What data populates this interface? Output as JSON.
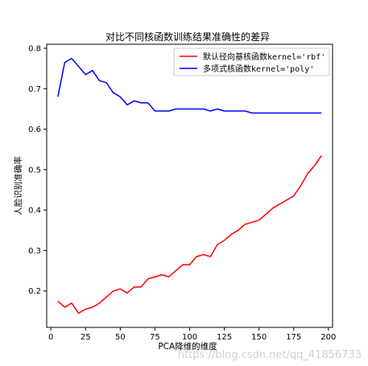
{
  "chart_data": {
    "type": "line",
    "title": "对比不同核函数训练结果准确性的差异",
    "xlabel": "PCA降维的维度",
    "ylabel": "人脸识别准确率",
    "xlim": [
      -3,
      203
    ],
    "ylim": [
      0.11,
      0.81
    ],
    "xticks": [
      0,
      25,
      50,
      75,
      100,
      125,
      150,
      175,
      200
    ],
    "yticks": [
      0.2,
      0.3,
      0.4,
      0.5,
      0.6,
      0.7,
      0.8
    ],
    "grid": false,
    "legend_position": "top-right",
    "x": [
      5,
      10,
      15,
      20,
      25,
      30,
      35,
      40,
      45,
      50,
      55,
      60,
      65,
      70,
      75,
      80,
      85,
      90,
      95,
      100,
      105,
      110,
      115,
      120,
      125,
      130,
      135,
      140,
      145,
      150,
      155,
      160,
      165,
      170,
      175,
      180,
      185,
      190,
      195
    ],
    "series": [
      {
        "name": "默认径向基核函数kernel='rbf'",
        "color": "#ff0000",
        "values": [
          0.175,
          0.16,
          0.17,
          0.145,
          0.155,
          0.16,
          0.17,
          0.185,
          0.2,
          0.205,
          0.195,
          0.21,
          0.21,
          0.23,
          0.235,
          0.24,
          0.235,
          0.25,
          0.265,
          0.265,
          0.285,
          0.29,
          0.285,
          0.315,
          0.325,
          0.34,
          0.35,
          0.365,
          0.37,
          0.375,
          0.39,
          0.405,
          0.415,
          0.425,
          0.435,
          0.46,
          0.49,
          0.51,
          0.535
        ]
      },
      {
        "name": "多项式核函数kernel='poly'",
        "color": "#0000ff",
        "values": [
          0.68,
          0.765,
          0.775,
          0.755,
          0.735,
          0.745,
          0.72,
          0.715,
          0.69,
          0.68,
          0.66,
          0.67,
          0.665,
          0.665,
          0.645,
          0.645,
          0.645,
          0.65,
          0.65,
          0.65,
          0.65,
          0.65,
          0.645,
          0.65,
          0.645,
          0.645,
          0.645,
          0.645,
          0.64,
          0.64,
          0.64,
          0.64,
          0.64,
          0.64,
          0.64,
          0.64,
          0.64,
          0.64,
          0.64
        ]
      }
    ]
  },
  "watermark": "https://blog.csdn.net/qq_41856733"
}
